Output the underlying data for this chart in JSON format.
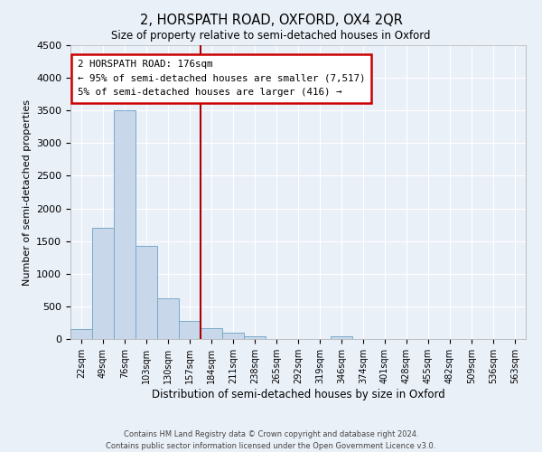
{
  "title": "2, HORSPATH ROAD, OXFORD, OX4 2QR",
  "subtitle": "Size of property relative to semi-detached houses in Oxford",
  "xlabel": "Distribution of semi-detached houses by size in Oxford",
  "ylabel": "Number of semi-detached properties",
  "bin_labels": [
    "22sqm",
    "49sqm",
    "76sqm",
    "103sqm",
    "130sqm",
    "157sqm",
    "184sqm",
    "211sqm",
    "238sqm",
    "265sqm",
    "292sqm",
    "319sqm",
    "346sqm",
    "374sqm",
    "401sqm",
    "428sqm",
    "455sqm",
    "482sqm",
    "509sqm",
    "536sqm",
    "563sqm"
  ],
  "bar_values": [
    150,
    1700,
    3500,
    1420,
    630,
    280,
    170,
    100,
    40,
    0,
    0,
    0,
    40,
    0,
    0,
    0,
    0,
    0,
    0,
    0,
    0
  ],
  "bar_color": "#c8d8ea",
  "bar_edge_color": "#7aaac8",
  "vline_color": "#aa0000",
  "ylim": [
    0,
    4500
  ],
  "yticks": [
    0,
    500,
    1000,
    1500,
    2000,
    2500,
    3000,
    3500,
    4000,
    4500
  ],
  "annotation_title": "2 HORSPATH ROAD: 176sqm",
  "annotation_line1": "← 95% of semi-detached houses are smaller (7,517)",
  "annotation_line2": "5% of semi-detached houses are larger (416) →",
  "annotation_box_color": "#ffffff",
  "annotation_box_edge": "#cc0000",
  "bg_color": "#eaf0f8",
  "grid_color": "#ffffff",
  "footer_line1": "Contains HM Land Registry data © Crown copyright and database right 2024.",
  "footer_line2": "Contains public sector information licensed under the Open Government Licence v3.0."
}
